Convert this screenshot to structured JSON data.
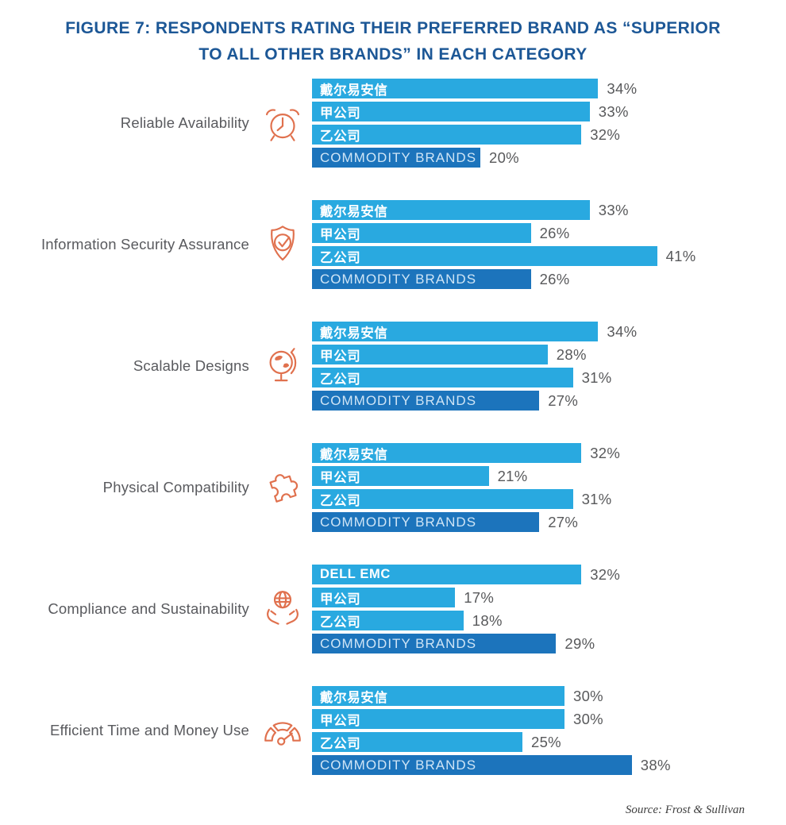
{
  "title": "FIGURE 7: RESPONDENTS RATING THEIR PREFERRED BRAND AS “SUPERIOR\nTO ALL OTHER BRANDS” IN EACH CATEGORY",
  "source": "Source: Frost & Sullivan",
  "colors": {
    "title_blue": "#1C5796",
    "bar_light": "#29A9E0",
    "bar_dark": "#1C74BC",
    "commodity_label": "#CFE5F6",
    "value_text": "#58595B",
    "category_text": "#595A5E",
    "icon_orange": "#E0714E",
    "source_text": "#3F3F3F"
  },
  "chart_data": {
    "type": "bar",
    "orientation": "horizontal",
    "unit": "percent",
    "xlim": [
      0,
      45
    ],
    "legend": "none",
    "grid": false,
    "value_labels_shown": true,
    "groups": [
      {
        "category": "Reliable Availability",
        "icon": "alarm-clock-icon",
        "bars": [
          {
            "brand": "戴尔易安信",
            "value": 34,
            "value_label": "34%",
            "kind": "brand"
          },
          {
            "brand": "甲公司",
            "value": 33,
            "value_label": "33%",
            "kind": "brand"
          },
          {
            "brand": "乙公司",
            "value": 32,
            "value_label": "32%",
            "kind": "brand"
          },
          {
            "brand": "COMMODITY BRANDS",
            "value": 20,
            "value_label": "20%",
            "kind": "commodity"
          }
        ]
      },
      {
        "category": "Information Security Assurance",
        "icon": "shield-check-icon",
        "bars": [
          {
            "brand": "戴尔易安信",
            "value": 33,
            "value_label": "33%",
            "kind": "brand"
          },
          {
            "brand": "甲公司",
            "value": 26,
            "value_label": "26%",
            "kind": "brand"
          },
          {
            "brand": "乙公司",
            "value": 41,
            "value_label": "41%",
            "kind": "brand"
          },
          {
            "brand": "COMMODITY BRANDS",
            "value": 26,
            "value_label": "26%",
            "kind": "commodity"
          }
        ]
      },
      {
        "category": "Scalable Designs",
        "icon": "desk-globe-icon",
        "bars": [
          {
            "brand": "戴尔易安信",
            "value": 34,
            "value_label": "34%",
            "kind": "brand"
          },
          {
            "brand": "甲公司",
            "value": 28,
            "value_label": "28%",
            "kind": "brand"
          },
          {
            "brand": "乙公司",
            "value": 31,
            "value_label": "31%",
            "kind": "brand"
          },
          {
            "brand": "COMMODITY BRANDS",
            "value": 27,
            "value_label": "27%",
            "kind": "commodity"
          }
        ]
      },
      {
        "category": "Physical Compatibility",
        "icon": "puzzle-piece-icon",
        "bars": [
          {
            "brand": "戴尔易安信",
            "value": 32,
            "value_label": "32%",
            "kind": "brand"
          },
          {
            "brand": "甲公司",
            "value": 21,
            "value_label": "21%",
            "kind": "brand"
          },
          {
            "brand": "乙公司",
            "value": 31,
            "value_label": "31%",
            "kind": "brand"
          },
          {
            "brand": "COMMODITY BRANDS",
            "value": 27,
            "value_label": "27%",
            "kind": "commodity"
          }
        ]
      },
      {
        "category": "Compliance and Sustainability",
        "icon": "hands-holding-globe-icon",
        "bars": [
          {
            "brand": "DELL EMC",
            "value": 32,
            "value_label": "32%",
            "kind": "brand"
          },
          {
            "brand": "甲公司",
            "value": 17,
            "value_label": "17%",
            "kind": "brand"
          },
          {
            "brand": "乙公司",
            "value": 18,
            "value_label": "18%",
            "kind": "brand"
          },
          {
            "brand": "COMMODITY BRANDS",
            "value": 29,
            "value_label": "29%",
            "kind": "commodity"
          }
        ]
      },
      {
        "category": "Efficient Time and Money Use",
        "icon": "speedometer-gauge-icon",
        "bars": [
          {
            "brand": "戴尔易安信",
            "value": 30,
            "value_label": "30%",
            "kind": "brand"
          },
          {
            "brand": "甲公司",
            "value": 30,
            "value_label": "30%",
            "kind": "brand"
          },
          {
            "brand": "乙公司",
            "value": 25,
            "value_label": "25%",
            "kind": "brand"
          },
          {
            "brand": "COMMODITY BRANDS",
            "value": 38,
            "value_label": "38%",
            "kind": "commodity"
          }
        ]
      }
    ]
  }
}
